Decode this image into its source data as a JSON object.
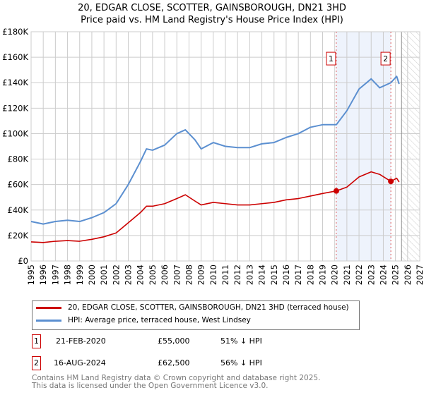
{
  "chart_data": {
    "type": "line",
    "title": "20, EDGAR CLOSE, SCOTTER, GAINSBOROUGH, DN21 3HD",
    "subtitle": "Price paid vs. HM Land Registry's House Price Index (HPI)",
    "xlim": [
      1995,
      2027
    ],
    "ylim": [
      0,
      180000
    ],
    "x_ticks": [
      "1995",
      "1996",
      "1997",
      "1998",
      "1999",
      "2000",
      "2001",
      "2002",
      "2003",
      "2004",
      "2005",
      "2006",
      "2007",
      "2008",
      "2009",
      "2010",
      "2011",
      "2012",
      "2013",
      "2014",
      "2015",
      "2016",
      "2017",
      "2018",
      "2019",
      "2020",
      "2021",
      "2022",
      "2023",
      "2024",
      "2025",
      "2026",
      "2027"
    ],
    "y_ticks": [
      "£0",
      "£20K",
      "£40K",
      "£60K",
      "£80K",
      "£100K",
      "£120K",
      "£140K",
      "£160K",
      "£180K"
    ],
    "grid": true,
    "series": [
      {
        "name": "20, EDGAR CLOSE, SCOTTER, GAINSBOROUGH, DN21 3HD (terraced house)",
        "color": "#cc0000",
        "x": [
          1995,
          1996,
          1997,
          1998,
          1999,
          2000,
          2001,
          2002,
          2003,
          2004,
          2004.5,
          2005,
          2006,
          2007,
          2007.7,
          2008.5,
          2009,
          2010,
          2011,
          2012,
          2013,
          2014,
          2015,
          2016,
          2017,
          2018,
          2019,
          2020.13,
          2021,
          2022,
          2023,
          2023.7,
          2024.62,
          2025.1,
          2025.3
        ],
        "y": [
          15000,
          14500,
          15500,
          16000,
          15500,
          17000,
          19000,
          22000,
          30000,
          38000,
          43000,
          43000,
          45000,
          49000,
          52000,
          47000,
          44000,
          46000,
          45000,
          44000,
          44000,
          45000,
          46000,
          48000,
          49000,
          51000,
          53000,
          55000,
          58000,
          66000,
          70000,
          68000,
          62500,
          65000,
          62000
        ]
      },
      {
        "name": "HPI: Average price, terraced house, West Lindsey",
        "color": "#5b8fd0",
        "x": [
          1995,
          1996,
          1997,
          1998,
          1999,
          2000,
          2001,
          2002,
          2003,
          2004,
          2004.5,
          2005,
          2006,
          2007,
          2007.7,
          2008.5,
          2009,
          2010,
          2011,
          2012,
          2013,
          2014,
          2015,
          2016,
          2017,
          2018,
          2019,
          2020.13,
          2021,
          2022,
          2023,
          2023.7,
          2024.62,
          2025.1,
          2025.3
        ],
        "y": [
          31000,
          29000,
          31000,
          32000,
          31000,
          34000,
          38000,
          45000,
          60000,
          78000,
          88000,
          87000,
          91000,
          100000,
          103000,
          95000,
          88000,
          93000,
          90000,
          89000,
          89000,
          92000,
          93000,
          97000,
          100000,
          105000,
          107000,
          107000,
          118000,
          135000,
          143000,
          136000,
          140000,
          145000,
          139000
        ]
      }
    ],
    "sales": [
      {
        "label": "1",
        "x": 2020.13,
        "y": 55000
      },
      {
        "label": "2",
        "x": 2024.62,
        "y": 62500
      }
    ],
    "forecast_start": 2025.5
  },
  "legend": {
    "property": "20, EDGAR CLOSE, SCOTTER, GAINSBOROUGH, DN21 3HD (terraced house)",
    "hpi": "HPI: Average price, terraced house, West Lindsey"
  },
  "transactions": [
    {
      "num": "1",
      "date": "21-FEB-2020",
      "price": "£55,000",
      "diff": "51% ↓ HPI"
    },
    {
      "num": "2",
      "date": "16-AUG-2024",
      "price": "£62,500",
      "diff": "56% ↓ HPI"
    }
  ],
  "footer": {
    "line1": "Contains HM Land Registry data © Crown copyright and database right 2025.",
    "line2": "This data is licensed under the Open Government Licence v3.0."
  },
  "colors": {
    "red": "#cc0000",
    "blue": "#5b8fd0"
  }
}
